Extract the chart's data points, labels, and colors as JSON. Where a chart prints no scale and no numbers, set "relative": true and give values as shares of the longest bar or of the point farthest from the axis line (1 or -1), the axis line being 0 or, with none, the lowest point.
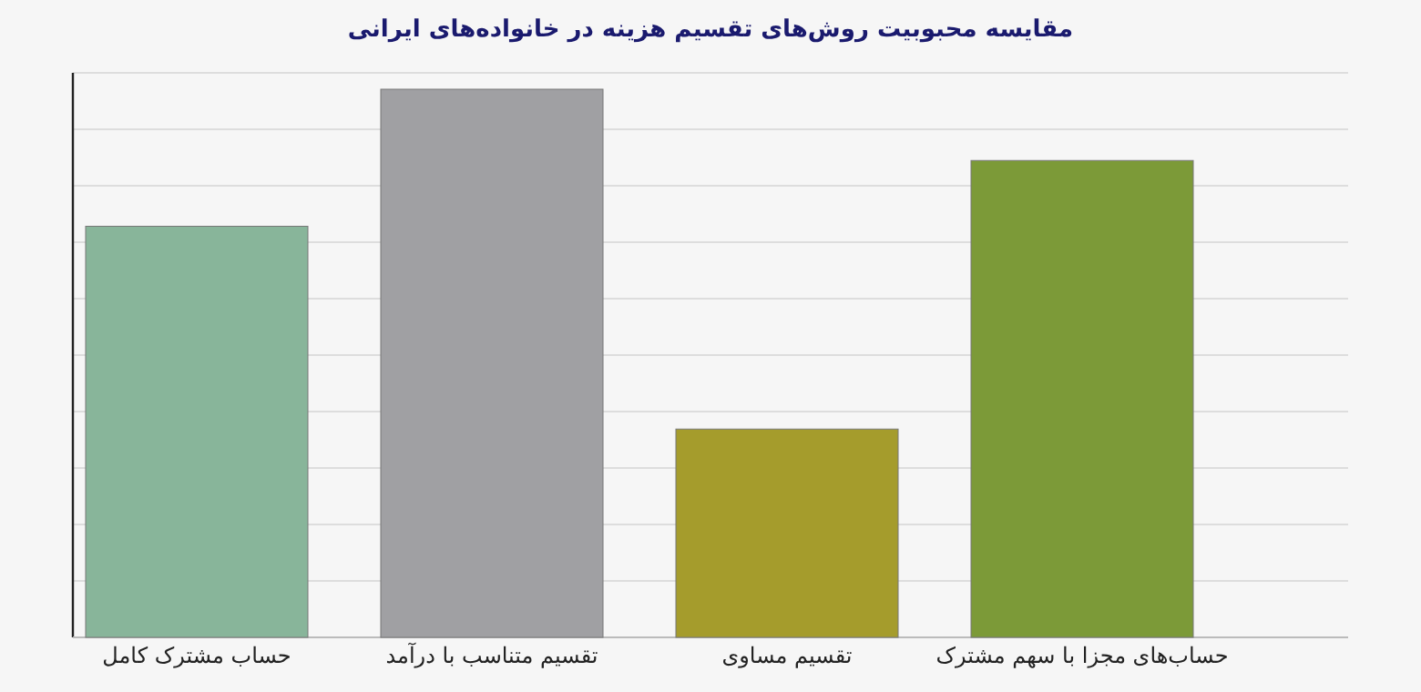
{
  "chart_data": {
    "type": "bar",
    "title": "مقایسه محبوبیت روش‌های تقسیم هزینه در خانواده‌های ایرانی",
    "relative": true,
    "grid": true,
    "categories": [
      "حساب مشترک کامل",
      "تقسیم متناسب با درآمد",
      "تقسیم مساوی",
      "حساب‌های مجزا با سهم مشترک"
    ],
    "values": [
      0.75,
      1,
      0.38,
      0.87
    ],
    "colors": [
      "#88b59a",
      "#a0a0a3",
      "#a59c2c",
      "#7c9a38"
    ]
  }
}
